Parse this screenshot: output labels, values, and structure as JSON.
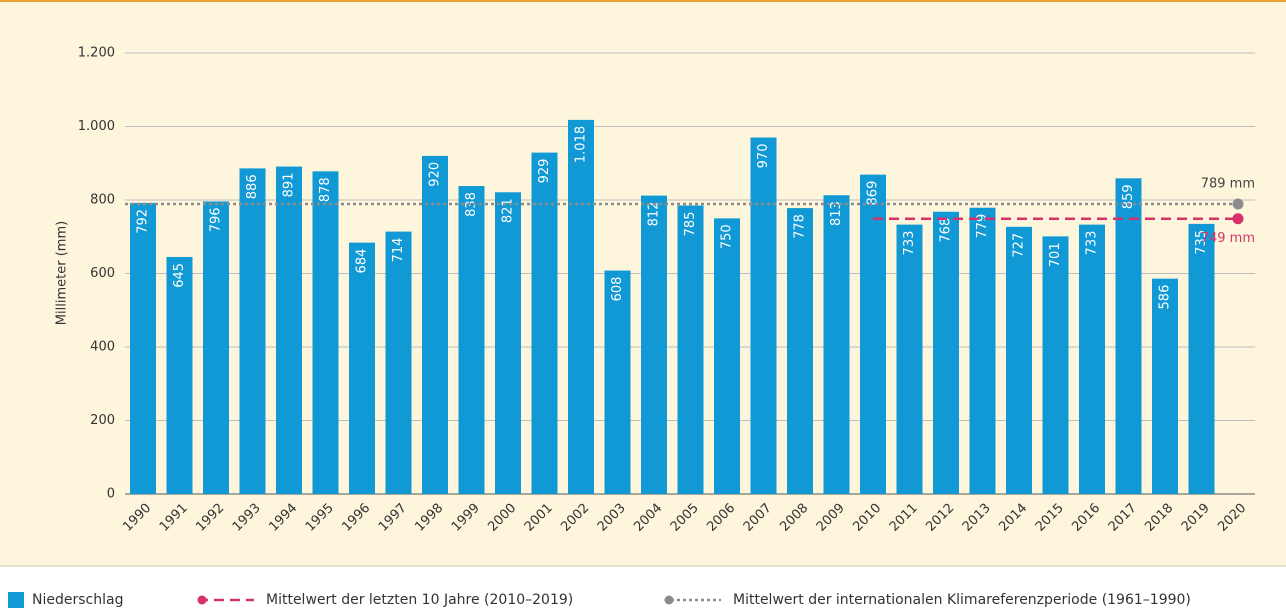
{
  "chart_data": {
    "type": "bar",
    "y_label": "Millimeter (mm)",
    "categories": [
      "1990",
      "1991",
      "1992",
      "1993",
      "1994",
      "1995",
      "1996",
      "1997",
      "1998",
      "1999",
      "2000",
      "2001",
      "2002",
      "2003",
      "2004",
      "2005",
      "2006",
      "2007",
      "2008",
      "2009",
      "2010",
      "2011",
      "2012",
      "2013",
      "2014",
      "2015",
      "2016",
      "2017",
      "2018",
      "2019",
      "2020"
    ],
    "series": [
      {
        "name": "Niederschlag",
        "color": "#1199d6",
        "values": [
          792,
          645,
          796,
          886,
          891,
          878,
          684,
          714,
          920,
          838,
          821,
          929,
          1018,
          608,
          812,
          785,
          750,
          970,
          778,
          813,
          869,
          733,
          768,
          779,
          727,
          701,
          733,
          859,
          586,
          735,
          null
        ],
        "value_labels": [
          "792",
          "645",
          "796",
          "886",
          "891",
          "878",
          "684",
          "714",
          "920",
          "838",
          "821",
          "929",
          "1.018",
          "608",
          "812",
          "785",
          "750",
          "970",
          "778",
          "813",
          "869",
          "733",
          "768",
          "779",
          "727",
          "701",
          "733",
          "859",
          "586",
          "735",
          null
        ]
      }
    ],
    "reference_lines": [
      {
        "name": "Mittelwert der letzten 10 Jahre (2010–2019)",
        "value": 749,
        "label": "749 mm",
        "color": "#d7336a",
        "dash": "10 6",
        "start": "2010",
        "end": "2020"
      },
      {
        "name": "Mittelwert der internationalen Klimareferenzperiode (1961–1990)",
        "value": 789,
        "label": "789 mm",
        "color": "#8c8c8c",
        "dash": "3 3",
        "start": "1990",
        "end": "2020"
      }
    ],
    "ylim": [
      0,
      1200
    ],
    "yticks": [
      0,
      200,
      400,
      600,
      800,
      {
        "value": 1000,
        "label": "1.000"
      },
      {
        "value": 1200,
        "label": "1.200"
      }
    ],
    "grid": true
  }
}
